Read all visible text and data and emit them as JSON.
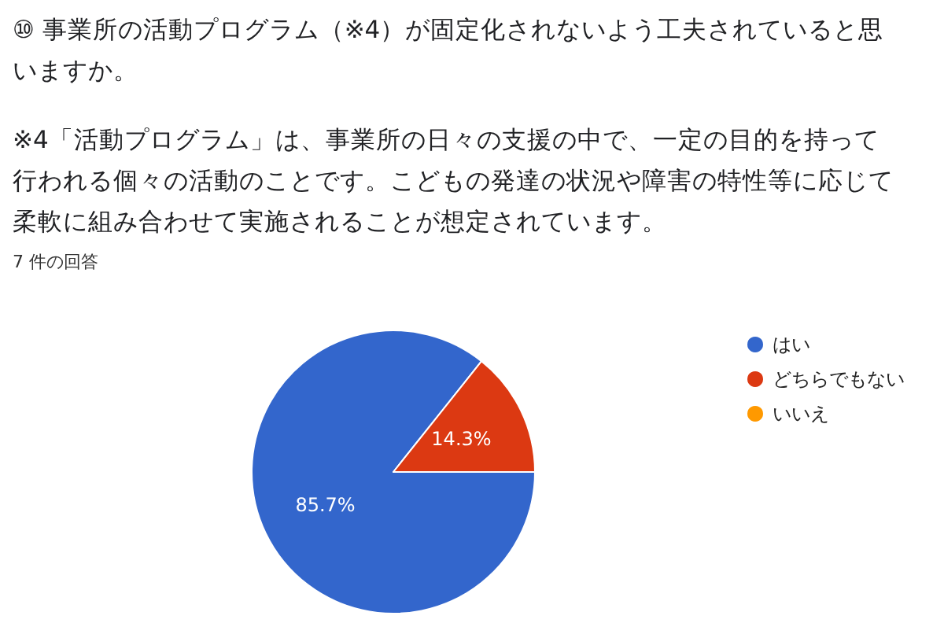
{
  "chart_data": {
    "type": "pie",
    "title": "⑩ 事業所の活動プログラム（※4）が固定化されないよう工夫されていると思いますか。",
    "subtitle": "※4「活動プログラム」は、事業所の日々の支援の中で、一定の目的を持って行われる個々の活動のことです。こどもの発達の状況や障害の特性等に応じて柔軟に組み合わせて実施されることが想定されています。",
    "annotations": [
      "7 件の回答"
    ],
    "categories": [
      "はい",
      "どちらでもない",
      "いいえ"
    ],
    "values": [
      85.7,
      14.3,
      0
    ],
    "colors": [
      "#3366cc",
      "#dc3912",
      "#ff9900"
    ],
    "value_labels": [
      "85.7%",
      "14.3%",
      null
    ],
    "legend": "right"
  }
}
